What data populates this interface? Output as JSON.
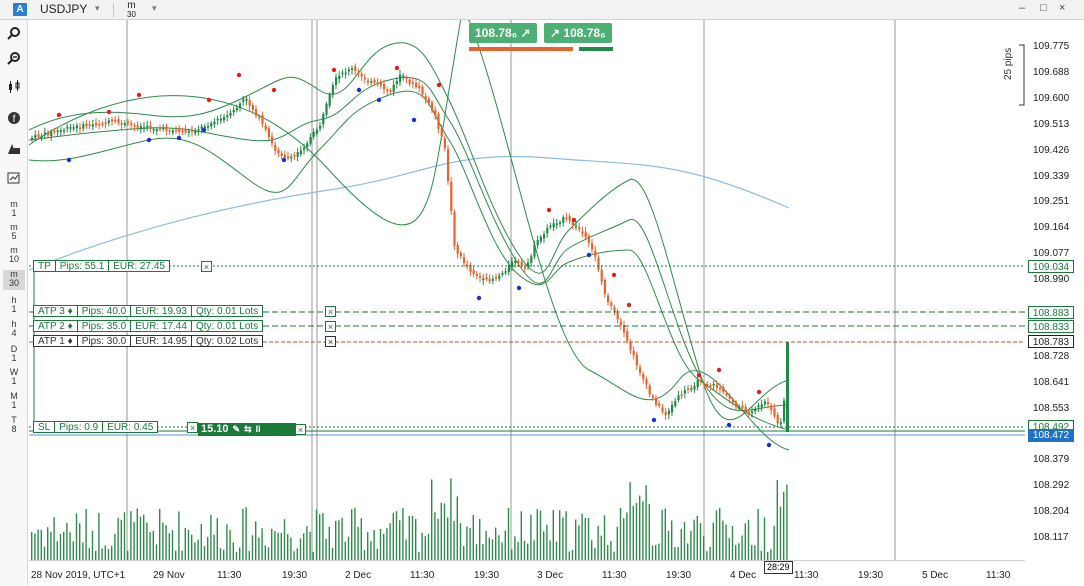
{
  "header": {
    "badge": "A",
    "symbol": "USDJPY",
    "timeframe_top": "m",
    "timeframe_bottom": "30",
    "dropdown_glyph": "▾",
    "minimize_glyph": "–",
    "restore_glyph": "□",
    "close_glyph": "×"
  },
  "sidebar": {
    "tools": [
      "zoom-in-icon",
      "zoom-out-icon",
      "candlestick-icon",
      "indicators-icon",
      "objects-icon",
      "chart-settings-icon"
    ],
    "timeframes": [
      {
        "top": "m",
        "bottom": "1"
      },
      {
        "top": "m",
        "bottom": "5"
      },
      {
        "top": "m",
        "bottom": "10"
      },
      {
        "top": "m",
        "bottom": "30"
      },
      {
        "top": "h",
        "bottom": "1"
      },
      {
        "top": "h",
        "bottom": "4"
      },
      {
        "top": "D",
        "bottom": "1"
      },
      {
        "top": "W",
        "bottom": "1"
      },
      {
        "top": "M",
        "bottom": "1"
      },
      {
        "top": "T",
        "bottom": "8"
      }
    ],
    "active_timeframe": "m30"
  },
  "trade_buttons": {
    "sell_label": "108.78₆",
    "buy_label": "108.78₆",
    "sell_arrow": "↗",
    "buy_arrow": "↗"
  },
  "pips_scale": "25 pips",
  "price_axis": {
    "labels": [
      "109.775",
      "109.688",
      "109.600",
      "109.513",
      "109.426",
      "109.339",
      "109.251",
      "109.164",
      "109.077",
      "108.990",
      "108.728",
      "108.641",
      "108.553",
      "108.379",
      "108.292",
      "108.204",
      "108.117"
    ],
    "tp_tag": "109.034",
    "atp3_tag": "108.883",
    "atp2_tag": "108.833",
    "atp1_tag": "108.783",
    "sl_tag": "108.492",
    "current_tag": "108.472"
  },
  "time_axis": {
    "labels": [
      "28 Nov 2019, UTC+1",
      "29 Nov",
      "11:30",
      "19:30",
      "2 Dec",
      "11:30",
      "19:30",
      "3 Dec",
      "11:30",
      "19:30",
      "4 Dec",
      "11:30",
      "19:30",
      "5 Dec",
      "11:30"
    ],
    "cursor_time": "28:29"
  },
  "orders": {
    "tp": {
      "name": "TP",
      "pips": "Pips: 55.1",
      "eur": "EUR: 27.45"
    },
    "atp3": {
      "name": "ATP 3 ♦",
      "pips": "Pips: 40.0",
      "eur": "EUR: 19.93",
      "qty": "Qty: 0.01 Lots"
    },
    "atp2": {
      "name": "ATP 2 ♦",
      "pips": "Pips: 35.0",
      "eur": "EUR: 17.44",
      "qty": "Qty: 0.01 Lots"
    },
    "atp1": {
      "name": "ATP 1 ♦",
      "pips": "Pips: 30.0",
      "eur": "EUR: 14.95",
      "qty": "Qty: 0.02 Lots"
    },
    "sl": {
      "name": "SL",
      "pips": "Pips: 0.9",
      "eur": "EUR: 0.45"
    },
    "position_value": "15.10",
    "close_glyph": "×"
  },
  "colors": {
    "bull": "#1f8a46",
    "bear": "#e8622c",
    "bands": "#2e8b4a",
    "ma": "#8fbde0",
    "level_green": "#1a7a3a",
    "current_price": "#1f73c3",
    "atp1_line": "#c0562a"
  }
}
